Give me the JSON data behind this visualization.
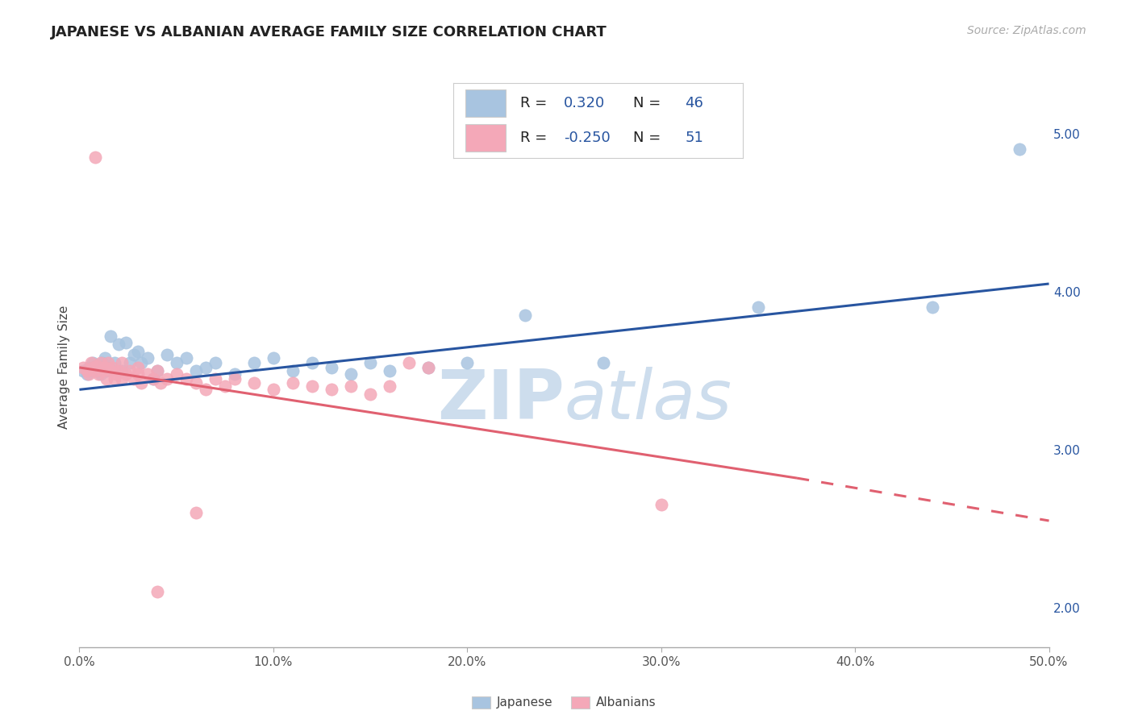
{
  "title": "JAPANESE VS ALBANIAN AVERAGE FAMILY SIZE CORRELATION CHART",
  "source_text": "Source: ZipAtlas.com",
  "ylabel": "Average Family Size",
  "xlim": [
    0.0,
    0.5
  ],
  "ylim": [
    1.75,
    5.3
  ],
  "yticks_right": [
    2.0,
    3.0,
    4.0,
    5.0
  ],
  "xtick_vals": [
    0.0,
    0.1,
    0.2,
    0.3,
    0.4,
    0.5
  ],
  "xtick_labels": [
    "0.0%",
    "10.0%",
    "20.0%",
    "30.0%",
    "40.0%",
    "50.0%"
  ],
  "japanese_color": "#a8c4e0",
  "albanian_color": "#f4a8b8",
  "trend_blue": "#2855a0",
  "trend_pink": "#e06070",
  "watermark_color": "#cddded",
  "bg_color": "#ffffff",
  "grid_color": "#cccccc",
  "japanese_pts": [
    [
      0.002,
      3.5
    ],
    [
      0.004,
      3.48
    ],
    [
      0.005,
      3.52
    ],
    [
      0.007,
      3.55
    ],
    [
      0.008,
      3.5
    ],
    [
      0.009,
      3.53
    ],
    [
      0.01,
      3.5
    ],
    [
      0.011,
      3.48
    ],
    [
      0.012,
      3.55
    ],
    [
      0.013,
      3.58
    ],
    [
      0.014,
      3.5
    ],
    [
      0.015,
      3.52
    ],
    [
      0.016,
      3.72
    ],
    [
      0.018,
      3.55
    ],
    [
      0.02,
      3.67
    ],
    [
      0.022,
      3.5
    ],
    [
      0.024,
      3.68
    ],
    [
      0.026,
      3.55
    ],
    [
      0.028,
      3.6
    ],
    [
      0.03,
      3.62
    ],
    [
      0.032,
      3.55
    ],
    [
      0.035,
      3.58
    ],
    [
      0.038,
      3.45
    ],
    [
      0.04,
      3.5
    ],
    [
      0.045,
      3.6
    ],
    [
      0.05,
      3.55
    ],
    [
      0.055,
      3.58
    ],
    [
      0.06,
      3.5
    ],
    [
      0.065,
      3.52
    ],
    [
      0.07,
      3.55
    ],
    [
      0.08,
      3.48
    ],
    [
      0.09,
      3.55
    ],
    [
      0.1,
      3.58
    ],
    [
      0.11,
      3.5
    ],
    [
      0.12,
      3.55
    ],
    [
      0.13,
      3.52
    ],
    [
      0.14,
      3.48
    ],
    [
      0.15,
      3.55
    ],
    [
      0.16,
      3.5
    ],
    [
      0.18,
      3.52
    ],
    [
      0.2,
      3.55
    ],
    [
      0.23,
      3.85
    ],
    [
      0.27,
      3.55
    ],
    [
      0.35,
      3.9
    ],
    [
      0.44,
      3.9
    ],
    [
      0.485,
      4.9
    ]
  ],
  "albanian_pts": [
    [
      0.002,
      3.52
    ],
    [
      0.004,
      3.5
    ],
    [
      0.005,
      3.48
    ],
    [
      0.006,
      3.55
    ],
    [
      0.007,
      3.52
    ],
    [
      0.008,
      3.5
    ],
    [
      0.009,
      3.53
    ],
    [
      0.01,
      3.48
    ],
    [
      0.011,
      3.55
    ],
    [
      0.012,
      3.5
    ],
    [
      0.013,
      3.52
    ],
    [
      0.014,
      3.45
    ],
    [
      0.015,
      3.55
    ],
    [
      0.016,
      3.5
    ],
    [
      0.017,
      3.52
    ],
    [
      0.018,
      3.45
    ],
    [
      0.019,
      3.48
    ],
    [
      0.02,
      3.5
    ],
    [
      0.022,
      3.45
    ],
    [
      0.024,
      3.48
    ],
    [
      0.026,
      3.5
    ],
    [
      0.028,
      3.45
    ],
    [
      0.03,
      3.48
    ],
    [
      0.032,
      3.42
    ],
    [
      0.035,
      3.48
    ],
    [
      0.038,
      3.45
    ],
    [
      0.04,
      3.5
    ],
    [
      0.042,
      3.42
    ],
    [
      0.045,
      3.45
    ],
    [
      0.05,
      3.48
    ],
    [
      0.055,
      3.45
    ],
    [
      0.06,
      3.42
    ],
    [
      0.065,
      3.38
    ],
    [
      0.07,
      3.45
    ],
    [
      0.075,
      3.4
    ],
    [
      0.08,
      3.45
    ],
    [
      0.09,
      3.42
    ],
    [
      0.1,
      3.38
    ],
    [
      0.11,
      3.42
    ],
    [
      0.12,
      3.4
    ],
    [
      0.13,
      3.38
    ],
    [
      0.14,
      3.4
    ],
    [
      0.15,
      3.35
    ],
    [
      0.16,
      3.4
    ],
    [
      0.17,
      3.55
    ],
    [
      0.18,
      3.52
    ],
    [
      0.008,
      4.85
    ],
    [
      0.022,
      3.55
    ],
    [
      0.03,
      3.52
    ],
    [
      0.3,
      2.65
    ],
    [
      0.06,
      2.6
    ],
    [
      0.04,
      2.1
    ]
  ]
}
